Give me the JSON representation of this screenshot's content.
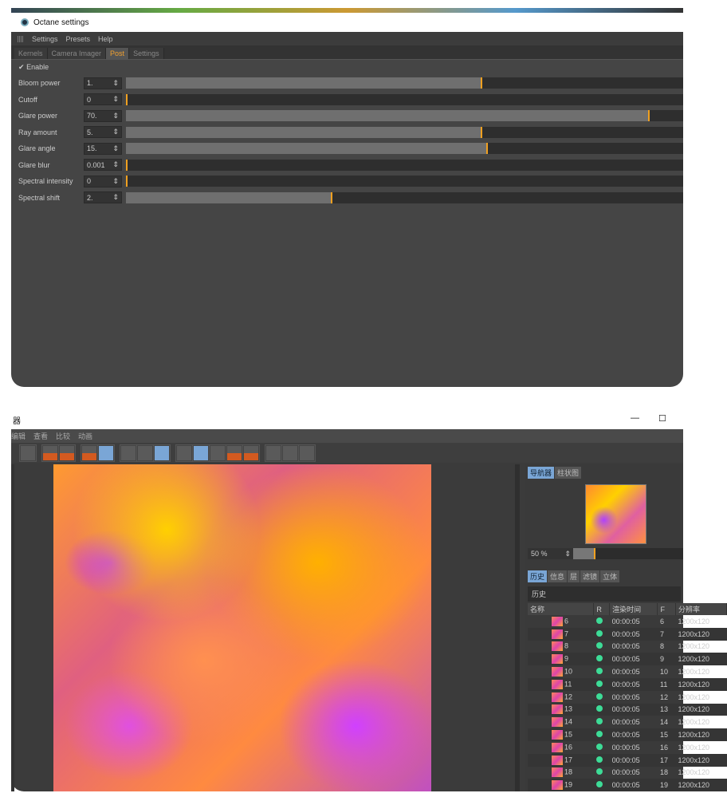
{
  "octane": {
    "title": "Octane settings",
    "menu": [
      "Settings",
      "Presets",
      "Help"
    ],
    "tabs": [
      {
        "label": "Kernels"
      },
      {
        "label": "Camera Imager"
      },
      {
        "label": "Post",
        "active": true
      },
      {
        "label": "Settings"
      }
    ],
    "enable_label": "Enable",
    "enable_checked": true,
    "params": [
      {
        "label": "Bloom power",
        "value": "1.",
        "fill": 0.64
      },
      {
        "label": "Cutoff",
        "value": "0",
        "fill": 0
      },
      {
        "label": "Glare power",
        "value": "70.",
        "fill": 0.94
      },
      {
        "label": "Ray amount",
        "value": "5.",
        "fill": 0.64
      },
      {
        "label": "Glare angle",
        "value": "15.",
        "fill": 0.65
      },
      {
        "label": "Glare blur",
        "value": "0.001",
        "fill": 0
      },
      {
        "label": "Spectral intensity",
        "value": "0",
        "fill": 0
      },
      {
        "label": "Spectral shift",
        "value": "2.",
        "fill": 0.37
      }
    ],
    "accent": "#f0a020"
  },
  "viewer": {
    "title": "器",
    "minimize": "—",
    "maximize": "☐",
    "menu": [
      "编辑",
      "查看",
      "比较",
      "动画"
    ],
    "nav_tabs": [
      {
        "label": "导航器",
        "active": true
      },
      {
        "label": "柱状图"
      }
    ],
    "zoom": "50 %",
    "zoom_fill": 0.2,
    "hist_tabs": [
      {
        "label": "历史",
        "active": true
      },
      {
        "label": "信息"
      },
      {
        "label": "层"
      },
      {
        "label": "滤镜"
      },
      {
        "label": "立体"
      }
    ],
    "history_header": "历史",
    "columns": [
      "名称",
      "R",
      "渲染时间",
      "F",
      "分辨率"
    ],
    "rows": [
      {
        "name": "6",
        "time": "00:00:05",
        "f": "6",
        "res": "1200x120"
      },
      {
        "name": "7",
        "time": "00:00:05",
        "f": "7",
        "res": "1200x120"
      },
      {
        "name": "8",
        "time": "00:00:05",
        "f": "8",
        "res": "1200x120"
      },
      {
        "name": "9",
        "time": "00:00:05",
        "f": "9",
        "res": "1200x120"
      },
      {
        "name": "10",
        "time": "00:00:05",
        "f": "10",
        "res": "1200x120"
      },
      {
        "name": "11",
        "time": "00:00:05",
        "f": "11",
        "res": "1200x120"
      },
      {
        "name": "12",
        "time": "00:00:05",
        "f": "12",
        "res": "1200x120"
      },
      {
        "name": "13",
        "time": "00:00:05",
        "f": "13",
        "res": "1200x120"
      },
      {
        "name": "14",
        "time": "00:00:05",
        "f": "14",
        "res": "1200x120"
      },
      {
        "name": "15",
        "time": "00:00:05",
        "f": "15",
        "res": "1200x120"
      },
      {
        "name": "16",
        "time": "00:00:05",
        "f": "16",
        "res": "1200x120"
      },
      {
        "name": "17",
        "time": "00:00:05",
        "f": "17",
        "res": "1200x120"
      },
      {
        "name": "18",
        "time": "00:00:05",
        "f": "18",
        "res": "1200x120"
      },
      {
        "name": "19",
        "time": "00:00:05",
        "f": "19",
        "res": "1200x120"
      }
    ],
    "status_color": "#3ddc97"
  }
}
